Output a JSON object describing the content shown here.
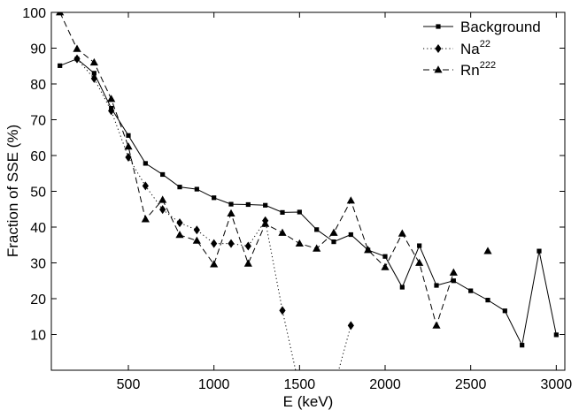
{
  "chart_data": {
    "type": "line",
    "title": "",
    "xlabel": "E (keV)",
    "ylabel": "Fraction of  SSE (%)",
    "xlim": [
      50,
      3050
    ],
    "ylim": [
      0,
      100
    ],
    "xticks": [
      500,
      1000,
      1500,
      2000,
      2500,
      3000
    ],
    "yticks": [
      10,
      20,
      30,
      40,
      50,
      60,
      70,
      80,
      90,
      100
    ],
    "legend_position": "top-right",
    "grid": false,
    "series": [
      {
        "name": "Background",
        "name_base": "Background",
        "name_sup": "",
        "line_style": "solid",
        "marker": "square",
        "points": [
          [
            100,
            85.1
          ],
          [
            200,
            87.0
          ],
          [
            300,
            83.0
          ],
          [
            400,
            73.2
          ],
          [
            500,
            65.6
          ],
          [
            600,
            57.8
          ],
          [
            700,
            54.7
          ],
          [
            800,
            51.2
          ],
          [
            900,
            50.6
          ],
          [
            1000,
            48.2
          ],
          [
            1100,
            46.4
          ],
          [
            1200,
            46.3
          ],
          [
            1300,
            46.1
          ],
          [
            1400,
            44.1
          ],
          [
            1500,
            44.2
          ],
          [
            1600,
            39.3
          ],
          [
            1700,
            35.9
          ],
          [
            1800,
            37.9
          ],
          [
            1900,
            33.6
          ],
          [
            2000,
            31.8
          ],
          [
            2100,
            23.2
          ],
          [
            2200,
            34.8
          ],
          [
            2300,
            23.7
          ],
          [
            2400,
            25.0
          ],
          [
            2500,
            22.2
          ],
          [
            2600,
            19.6
          ],
          [
            2700,
            16.6
          ],
          [
            2800,
            7.0
          ],
          [
            2900,
            33.3
          ],
          [
            3000,
            9.9
          ]
        ]
      },
      {
        "name": "Na22",
        "name_base": "Na",
        "name_sup": "22",
        "line_style": "dotted",
        "marker": "diamond",
        "points": [
          [
            200,
            87.0
          ],
          [
            300,
            81.5
          ],
          [
            400,
            72.5
          ],
          [
            500,
            59.5
          ],
          [
            600,
            51.5
          ],
          [
            700,
            44.9
          ],
          [
            800,
            41.2
          ],
          [
            900,
            39.2
          ],
          [
            1000,
            35.4
          ],
          [
            1100,
            35.4
          ],
          [
            1200,
            34.7
          ],
          [
            1300,
            41.8
          ],
          [
            1400,
            16.7
          ],
          [
            1500,
            -5
          ],
          [
            1700,
            -5
          ],
          [
            1800,
            12.5
          ]
        ],
        "marker_points": [
          [
            200,
            87.0
          ],
          [
            300,
            81.5
          ],
          [
            400,
            72.5
          ],
          [
            500,
            59.5
          ],
          [
            600,
            51.5
          ],
          [
            700,
            44.9
          ],
          [
            800,
            41.2
          ],
          [
            900,
            39.2
          ],
          [
            1000,
            35.4
          ],
          [
            1100,
            35.4
          ],
          [
            1200,
            34.7
          ],
          [
            1300,
            41.8
          ],
          [
            1400,
            16.7
          ],
          [
            1800,
            12.5
          ]
        ]
      },
      {
        "name": "Rn222",
        "name_base": "Rn",
        "name_sup": "222",
        "line_style": "dashed",
        "marker": "triangle",
        "points": [
          [
            100,
            100.0
          ],
          [
            200,
            89.8
          ],
          [
            300,
            86.0
          ],
          [
            400,
            75.8
          ],
          [
            500,
            62.5
          ],
          [
            600,
            42.2
          ],
          [
            700,
            47.6
          ],
          [
            800,
            37.8
          ],
          [
            900,
            36.2
          ],
          [
            1000,
            29.6
          ],
          [
            1100,
            43.8
          ],
          [
            1200,
            29.8
          ],
          [
            1300,
            40.9
          ],
          [
            1400,
            38.4
          ],
          [
            1500,
            35.4
          ],
          [
            1600,
            34.0
          ],
          [
            1700,
            38.4
          ],
          [
            1800,
            47.4
          ],
          [
            1900,
            33.6
          ],
          [
            2000,
            28.8
          ],
          [
            2100,
            38.2
          ],
          [
            2200,
            30.0
          ],
          [
            2300,
            12.5
          ],
          [
            2400,
            27.3
          ]
        ],
        "marker_points": [
          [
            100,
            100.0
          ],
          [
            200,
            89.8
          ],
          [
            300,
            86.0
          ],
          [
            400,
            75.8
          ],
          [
            500,
            62.5
          ],
          [
            600,
            42.2
          ],
          [
            700,
            47.6
          ],
          [
            800,
            37.8
          ],
          [
            900,
            36.2
          ],
          [
            1000,
            29.6
          ],
          [
            1100,
            43.8
          ],
          [
            1200,
            29.8
          ],
          [
            1300,
            40.9
          ],
          [
            1400,
            38.4
          ],
          [
            1500,
            35.4
          ],
          [
            1600,
            34.0
          ],
          [
            1700,
            38.4
          ],
          [
            1800,
            47.4
          ],
          [
            1900,
            33.6
          ],
          [
            2000,
            28.8
          ],
          [
            2100,
            38.2
          ],
          [
            2200,
            30.0
          ],
          [
            2300,
            12.5
          ],
          [
            2400,
            27.3
          ],
          [
            2600,
            33.3
          ]
        ]
      }
    ]
  }
}
